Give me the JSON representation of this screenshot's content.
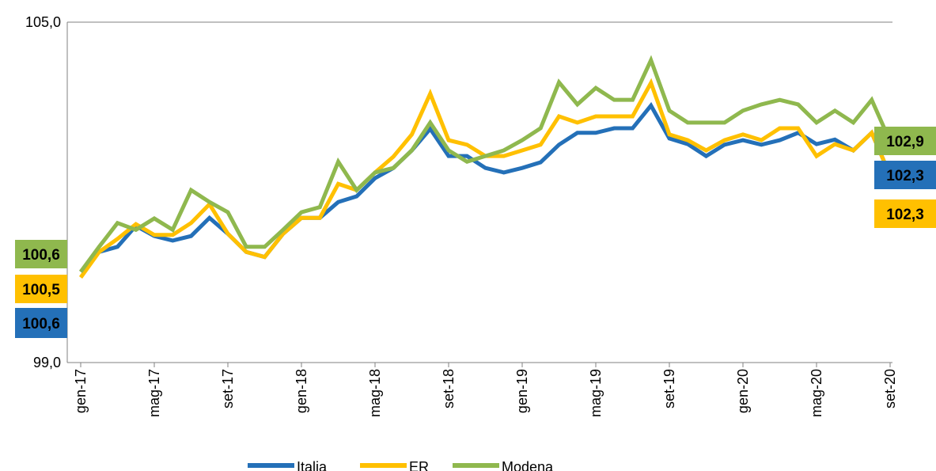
{
  "chart_data": {
    "type": "line",
    "categories": [
      "gen-17",
      null,
      null,
      null,
      "mag-17",
      null,
      null,
      null,
      "set-17",
      null,
      null,
      null,
      "gen-18",
      null,
      null,
      null,
      "mag-18",
      null,
      null,
      null,
      "set-18",
      null,
      null,
      null,
      "gen-19",
      null,
      null,
      null,
      "mag-19",
      null,
      null,
      null,
      "set-19",
      null,
      null,
      null,
      "gen-20",
      null,
      null,
      null,
      "mag-20",
      null,
      null,
      null,
      "set-20"
    ],
    "series": [
      {
        "name": "Italia",
        "color": "#2470b8",
        "values": [
          100.6,
          100.95,
          101.04,
          101.41,
          101.23,
          101.15,
          101.23,
          101.55,
          101.27,
          100.95,
          100.86,
          101.27,
          101.55,
          101.55,
          101.83,
          101.93,
          102.25,
          102.43,
          102.74,
          103.12,
          102.64,
          102.64,
          102.43,
          102.35,
          102.43,
          102.53,
          102.84,
          103.05,
          103.05,
          103.13,
          103.13,
          103.53,
          102.95,
          102.85,
          102.64,
          102.84,
          102.92,
          102.84,
          102.92,
          103.05,
          102.85,
          102.93,
          102.74,
          103.05,
          102.3
        ]
      },
      {
        "name": "ER",
        "color": "#ffc000",
        "values": [
          100.5,
          100.95,
          101.18,
          101.44,
          101.25,
          101.25,
          101.46,
          101.79,
          101.27,
          100.95,
          100.86,
          101.27,
          101.55,
          101.55,
          102.15,
          102.04,
          102.35,
          102.63,
          103.02,
          103.74,
          102.92,
          102.84,
          102.64,
          102.64,
          102.74,
          102.84,
          103.34,
          103.23,
          103.34,
          103.34,
          103.34,
          103.93,
          103.02,
          102.92,
          102.74,
          102.92,
          103.02,
          102.92,
          103.13,
          103.13,
          102.64,
          102.85,
          102.74,
          103.05,
          102.3
        ]
      },
      {
        "name": "Modena",
        "color": "#8fb84e",
        "values": [
          100.6,
          101.04,
          101.46,
          101.34,
          101.54,
          101.34,
          102.04,
          101.83,
          101.65,
          101.04,
          101.04,
          101.34,
          101.65,
          101.74,
          102.54,
          102.04,
          102.35,
          102.43,
          102.74,
          103.23,
          102.74,
          102.54,
          102.64,
          102.74,
          102.92,
          103.13,
          103.94,
          103.55,
          103.84,
          103.63,
          103.63,
          104.33,
          103.44,
          103.23,
          103.23,
          103.23,
          103.44,
          103.55,
          103.63,
          103.55,
          103.23,
          103.44,
          103.23,
          103.63,
          102.9
        ]
      }
    ],
    "ylim": [
      99,
      105
    ],
    "yticks": [
      {
        "value": 99,
        "label": "99,0"
      },
      {
        "value": 105,
        "label": "105,0"
      }
    ],
    "grid": true,
    "legend": "bottom",
    "annotations": [
      {
        "text": "100,6",
        "color": "#8fb84e"
      },
      {
        "text": "100,5",
        "color": "#ffc000"
      },
      {
        "text": "100,6",
        "color": "#2470b8"
      },
      {
        "text": "102,9",
        "color": "#8fb84e"
      },
      {
        "text": "102,3",
        "color": "#2470b8"
      },
      {
        "text": "102,3",
        "color": "#ffc000"
      }
    ]
  }
}
